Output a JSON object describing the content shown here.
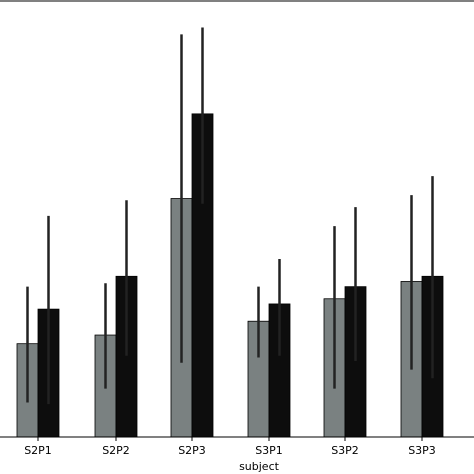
{
  "chart_data": {
    "type": "bar",
    "title": "",
    "xlabel": "subject",
    "ylabel": "",
    "categories": [
      "S2P1",
      "S2P2",
      "S2P3",
      "S3P1",
      "S3P2",
      "S3P3"
    ],
    "series": [
      {
        "color": "#7a8181",
        "values": [
          2.7,
          2.95,
          6.9,
          3.35,
          4.0,
          4.5
        ],
        "err_low": [
          1.7,
          1.55,
          4.75,
          1.05,
          2.6,
          2.55
        ],
        "err_high": [
          1.65,
          1.5,
          4.75,
          1.0,
          2.1,
          2.5
        ]
      },
      {
        "color": "#0d0d0d",
        "values": [
          3.7,
          4.65,
          9.35,
          3.85,
          4.35,
          4.65
        ],
        "err_low": [
          2.75,
          2.3,
          2.6,
          1.5,
          2.15,
          2.95
        ],
        "err_high": [
          2.7,
          2.2,
          2.5,
          1.3,
          2.3,
          2.9
        ]
      }
    ],
    "ylim": [
      0,
      12.5
    ],
    "grid": false,
    "legend": "none",
    "error_bar_color": "#222222"
  }
}
